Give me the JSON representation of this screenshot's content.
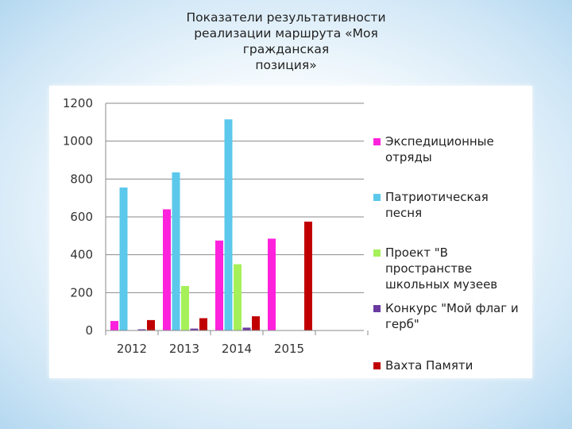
{
  "title_lines": [
    "Показатели результативности",
    "реализации маршрута «Моя гражданская",
    "позиция»"
  ],
  "chart_data": {
    "type": "bar",
    "title": "Показатели результативности реализации маршрута «Моя гражданская позиция»",
    "categories": [
      "2012",
      "2013",
      "2014",
      "2015"
    ],
    "ylim": [
      0,
      1200
    ],
    "yticks": [
      0,
      200,
      400,
      600,
      800,
      1000,
      1200
    ],
    "grid": true,
    "legend_position": "right",
    "series": [
      {
        "name": "Экспедиционные отряды",
        "color": "#ff22dd",
        "values": [
          50,
          640,
          475,
          485
        ],
        "legend_lines": [
          "Экспедиционные",
          "отряды"
        ]
      },
      {
        "name": "Патриотическая песня",
        "color": "#5bc8ec",
        "values": [
          755,
          835,
          1115,
          null
        ],
        "legend_lines": [
          "Патриотическая",
          "песня"
        ]
      },
      {
        "name": "Проект \"В пространстве школьных музеев",
        "color": "#a6f05a",
        "values": [
          null,
          235,
          350,
          null
        ],
        "legend_lines": [
          "Проект \"В",
          "пространстве",
          "школьных музеев"
        ]
      },
      {
        "name": "Конкурс \"Мой флаг и герб\"",
        "color": "#6a3aa0",
        "values": [
          5,
          10,
          15,
          null
        ],
        "legend_lines": [
          "Конкурс \"Мой флаг и",
          "герб\""
        ]
      },
      {
        "name": "Вахта Памяти",
        "color": "#c00000",
        "values": [
          55,
          65,
          75,
          575
        ],
        "legend_lines": [
          "Вахта Памяти"
        ]
      }
    ]
  }
}
